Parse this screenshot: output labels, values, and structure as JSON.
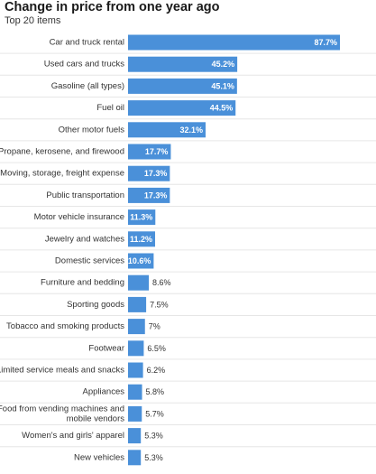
{
  "chart_data": {
    "type": "bar",
    "orientation": "horizontal",
    "title": "Change in price from one year ago",
    "subtitle": "Top 20 items",
    "bar_color": "#4a90d9",
    "categories": [
      [
        "Car and truck rental"
      ],
      [
        "Used cars and trucks"
      ],
      [
        "Gasoline (all types)"
      ],
      [
        "Fuel oil"
      ],
      [
        "Other motor fuels"
      ],
      [
        "Propane, kerosene, and firewood"
      ],
      [
        "Moving, storage, freight expense"
      ],
      [
        "Public transportation"
      ],
      [
        "Motor vehicle insurance"
      ],
      [
        "Jewelry and watches"
      ],
      [
        "Domestic services"
      ],
      [
        "Furniture and bedding"
      ],
      [
        "Sporting goods"
      ],
      [
        "Tobacco and smoking products"
      ],
      [
        "Footwear"
      ],
      [
        "Limited service meals and snacks"
      ],
      [
        "Appliances"
      ],
      [
        "Food from vending machines and",
        "mobile vendors"
      ],
      [
        "Women's and girls' apparel"
      ],
      [
        "New vehicles"
      ]
    ],
    "values": [
      87.7,
      45.2,
      45.1,
      44.5,
      32.1,
      17.7,
      17.3,
      17.3,
      11.3,
      11.2,
      10.6,
      8.6,
      7.5,
      7,
      6.5,
      6.2,
      5.8,
      5.7,
      5.3,
      5.3
    ],
    "labels": [
      "87.7%",
      "45.2%",
      "45.1%",
      "44.5%",
      "32.1%",
      "17.7%",
      "17.3%",
      "17.3%",
      "11.3%",
      "11.2%",
      "10.6%",
      "8.6%",
      "7.5%",
      "7%",
      "6.5%",
      "6.2%",
      "5.8%",
      "5.7%",
      "5.3%",
      "5.3%"
    ],
    "xlim": [
      0,
      87.7
    ]
  }
}
